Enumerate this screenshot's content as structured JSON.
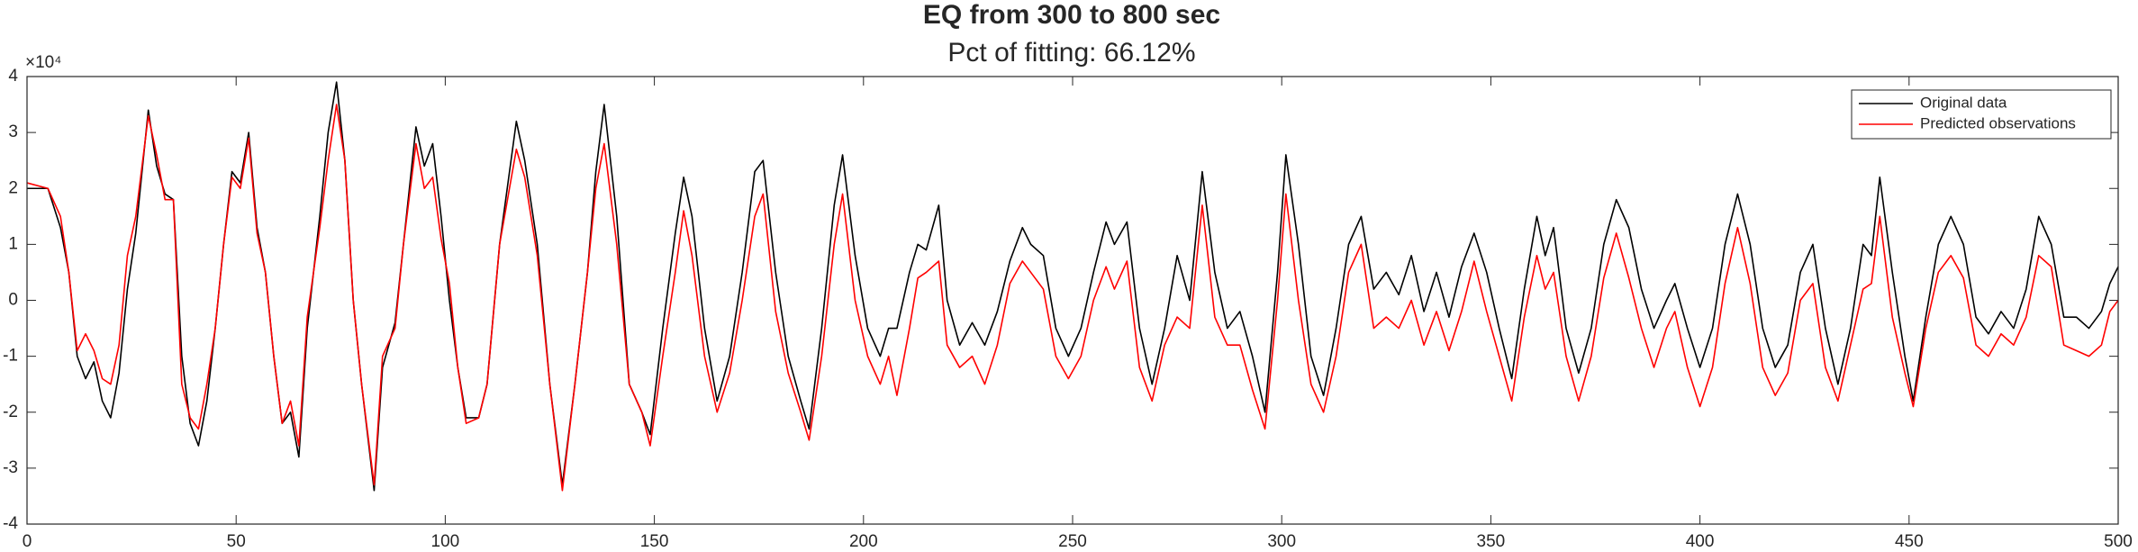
{
  "chart_data": {
    "type": "line",
    "title": "EQ from 300 to 800 sec",
    "subtitle": "Pct of fitting: 66.12%",
    "y_exponent": "×10⁴",
    "xlim": [
      0,
      500
    ],
    "xticks": [
      0,
      50,
      100,
      150,
      200,
      250,
      300,
      350,
      400,
      450,
      500
    ],
    "ylim": [
      -4,
      4
    ],
    "yticks": [
      -4,
      -3,
      -2,
      -1,
      0,
      1,
      2,
      3,
      4
    ],
    "grid": false,
    "legend": "northeast",
    "x": [
      0,
      5,
      8,
      10,
      12,
      14,
      16,
      18,
      20,
      22,
      24,
      26,
      29,
      31,
      33,
      35,
      37,
      39,
      41,
      43,
      45,
      47,
      49,
      51,
      53,
      55,
      57,
      59,
      61,
      63,
      65,
      67,
      70,
      72,
      74,
      76,
      78,
      80,
      83,
      85,
      88,
      90,
      93,
      95,
      97,
      99,
      101,
      103,
      105,
      108,
      110,
      113,
      117,
      119,
      122,
      125,
      128,
      131,
      134,
      136,
      138,
      141,
      144,
      147,
      149,
      152,
      155,
      157,
      159,
      162,
      165,
      168,
      171,
      174,
      176,
      179,
      182,
      185,
      187,
      190,
      193,
      195,
      198,
      201,
      204,
      206,
      208,
      211,
      213,
      215,
      218,
      220,
      223,
      226,
      229,
      232,
      235,
      238,
      240,
      243,
      246,
      249,
      252,
      255,
      258,
      260,
      263,
      266,
      269,
      272,
      275,
      278,
      281,
      284,
      287,
      290,
      293,
      296,
      299,
      301,
      304,
      307,
      310,
      313,
      316,
      319,
      322,
      325,
      328,
      331,
      334,
      337,
      340,
      343,
      346,
      349,
      352,
      355,
      358,
      361,
      363,
      365,
      368,
      371,
      374,
      377,
      380,
      383,
      386,
      389,
      392,
      394,
      397,
      400,
      403,
      406,
      409,
      412,
      415,
      418,
      421,
      424,
      427,
      430,
      433,
      436,
      439,
      441,
      443,
      446,
      449,
      451,
      454,
      457,
      460,
      463,
      466,
      469,
      472,
      475,
      478,
      481,
      484,
      487,
      490,
      493,
      496,
      498,
      500
    ],
    "series": [
      {
        "name": "Original data",
        "color": "#000000",
        "values": [
          2.0,
          2.0,
          1.3,
          0.5,
          -1.0,
          -1.4,
          -1.1,
          -1.8,
          -2.1,
          -1.3,
          0.2,
          1.2,
          3.4,
          2.4,
          1.9,
          1.8,
          -1.0,
          -2.2,
          -2.6,
          -1.8,
          -0.5,
          1.0,
          2.3,
          2.1,
          3.0,
          1.3,
          0.5,
          -1.0,
          -2.2,
          -2.0,
          -2.8,
          -0.5,
          1.5,
          3.0,
          3.9,
          2.5,
          0.0,
          -1.5,
          -3.4,
          -1.2,
          -0.4,
          1.0,
          3.1,
          2.4,
          2.8,
          1.5,
          0.0,
          -1.2,
          -2.1,
          -2.1,
          -1.5,
          1.0,
          3.2,
          2.5,
          1.0,
          -1.5,
          -3.3,
          -1.5,
          0.5,
          2.3,
          3.5,
          1.5,
          -1.5,
          -2.0,
          -2.4,
          -0.5,
          1.2,
          2.2,
          1.5,
          -0.5,
          -1.8,
          -1.0,
          0.5,
          2.3,
          2.5,
          0.5,
          -1.0,
          -1.8,
          -2.3,
          -0.5,
          1.7,
          2.6,
          0.8,
          -0.5,
          -1.0,
          -0.5,
          -0.5,
          0.5,
          1.0,
          0.9,
          1.7,
          0.0,
          -0.8,
          -0.4,
          -0.8,
          -0.2,
          0.7,
          1.3,
          1.0,
          0.8,
          -0.5,
          -1.0,
          -0.5,
          0.5,
          1.4,
          1.0,
          1.4,
          -0.5,
          -1.5,
          -0.5,
          0.8,
          0.0,
          2.3,
          0.5,
          -0.5,
          -0.2,
          -1.0,
          -2.0,
          0.5,
          2.6,
          1.0,
          -1.0,
          -1.7,
          -0.5,
          1.0,
          1.5,
          0.2,
          0.5,
          0.1,
          0.8,
          -0.2,
          0.5,
          -0.3,
          0.6,
          1.2,
          0.5,
          -0.5,
          -1.4,
          0.2,
          1.5,
          0.8,
          1.3,
          -0.5,
          -1.3,
          -0.5,
          1.0,
          1.8,
          1.3,
          0.2,
          -0.5,
          0.0,
          0.3,
          -0.5,
          -1.2,
          -0.5,
          1.0,
          1.9,
          1.0,
          -0.5,
          -1.2,
          -0.8,
          0.5,
          1.0,
          -0.5,
          -1.5,
          -0.5,
          1.0,
          0.8,
          2.2,
          0.5,
          -1.0,
          -1.8,
          -0.3,
          1.0,
          1.5,
          1.0,
          -0.3,
          -0.6,
          -0.2,
          -0.5,
          0.2,
          1.5,
          1.0,
          -0.3,
          -0.3,
          -0.5,
          -0.2,
          0.3,
          0.6
        ]
      },
      {
        "name": "Predicted observations",
        "color": "#ff0000",
        "values": [
          2.1,
          2.0,
          1.5,
          0.5,
          -0.9,
          -0.6,
          -0.9,
          -1.4,
          -1.5,
          -0.8,
          0.8,
          1.5,
          3.3,
          2.6,
          1.8,
          1.8,
          -1.5,
          -2.1,
          -2.3,
          -1.5,
          -0.5,
          1.0,
          2.2,
          2.0,
          2.9,
          1.2,
          0.5,
          -1.0,
          -2.2,
          -1.8,
          -2.6,
          -0.3,
          1.3,
          2.5,
          3.5,
          2.5,
          0.0,
          -1.5,
          -3.3,
          -1.0,
          -0.5,
          1.0,
          2.8,
          2.0,
          2.2,
          1.1,
          0.3,
          -1.2,
          -2.2,
          -2.1,
          -1.5,
          1.0,
          2.7,
          2.2,
          0.8,
          -1.5,
          -3.4,
          -1.5,
          0.5,
          2.0,
          2.8,
          1.0,
          -1.5,
          -2.0,
          -2.6,
          -1.0,
          0.5,
          1.6,
          0.8,
          -1.0,
          -2.0,
          -1.3,
          0.0,
          1.5,
          1.9,
          -0.2,
          -1.3,
          -2.0,
          -2.5,
          -1.0,
          1.0,
          1.9,
          0.0,
          -1.0,
          -1.5,
          -1.0,
          -1.7,
          -0.5,
          0.4,
          0.5,
          0.7,
          -0.8,
          -1.2,
          -1.0,
          -1.5,
          -0.8,
          0.3,
          0.7,
          0.5,
          0.2,
          -1.0,
          -1.4,
          -1.0,
          0.0,
          0.6,
          0.2,
          0.7,
          -1.2,
          -1.8,
          -0.8,
          -0.3,
          -0.5,
          1.7,
          -0.3,
          -0.8,
          -0.8,
          -1.6,
          -2.3,
          0.0,
          1.9,
          0.0,
          -1.5,
          -2.0,
          -1.0,
          0.5,
          1.0,
          -0.5,
          -0.3,
          -0.5,
          0.0,
          -0.8,
          -0.2,
          -0.9,
          -0.2,
          0.7,
          -0.2,
          -1.0,
          -1.8,
          -0.3,
          0.8,
          0.2,
          0.5,
          -1.0,
          -1.8,
          -1.0,
          0.4,
          1.2,
          0.4,
          -0.5,
          -1.2,
          -0.5,
          -0.2,
          -1.2,
          -1.9,
          -1.2,
          0.3,
          1.3,
          0.3,
          -1.2,
          -1.7,
          -1.3,
          0.0,
          0.3,
          -1.2,
          -1.8,
          -0.8,
          0.2,
          0.3,
          1.5,
          -0.3,
          -1.3,
          -1.9,
          -0.5,
          0.5,
          0.8,
          0.4,
          -0.8,
          -1.0,
          -0.6,
          -0.8,
          -0.3,
          0.8,
          0.6,
          -0.8,
          -0.9,
          -1.0,
          -0.8,
          -0.2,
          0.0
        ]
      }
    ]
  }
}
